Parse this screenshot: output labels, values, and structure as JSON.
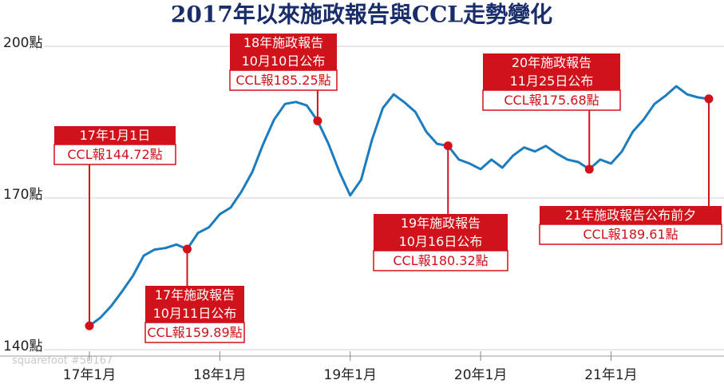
{
  "chart_data": {
    "type": "line",
    "title": "2017年以來施政報告與CCL走勢變化",
    "watermark": "squarefoot #50167",
    "color": "#1b7cc0",
    "categories": [
      "17年1月",
      null,
      null,
      null,
      null,
      null,
      null,
      null,
      null,
      null,
      null,
      null,
      "18年1月",
      null,
      null,
      null,
      null,
      null,
      null,
      null,
      null,
      null,
      null,
      null,
      "19年1月",
      null,
      null,
      null,
      null,
      null,
      null,
      null,
      null,
      null,
      null,
      null,
      "20年1月",
      null,
      null,
      null,
      null,
      null,
      null,
      null,
      null,
      null,
      null,
      null,
      "21年1月",
      null,
      null,
      null,
      null,
      null,
      null,
      null,
      null,
      null
    ],
    "values": [
      144.72,
      146.3,
      148.6,
      151.5,
      154.6,
      158.6,
      159.8,
      160.1,
      160.8,
      159.89,
      163.1,
      164.2,
      166.8,
      168.1,
      171.3,
      175.2,
      180.7,
      185.5,
      188.6,
      189.0,
      188.3,
      185.25,
      180.7,
      175.2,
      170.5,
      173.6,
      181.5,
      187.8,
      190.5,
      188.9,
      187.0,
      183.1,
      180.7,
      180.32,
      177.6,
      176.8,
      175.7,
      177.6,
      176.0,
      178.4,
      180.0,
      179.2,
      180.3,
      178.8,
      177.6,
      177.1,
      175.68,
      177.6,
      176.8,
      179.2,
      183.1,
      185.5,
      188.6,
      190.2,
      192.1,
      190.5,
      189.9,
      189.61
    ],
    "ylim": [
      140,
      200
    ],
    "yticks": [
      {
        "value": 140,
        "label": "140點"
      },
      {
        "value": 170,
        "label": "170點"
      },
      {
        "value": 200,
        "label": "200點"
      }
    ],
    "grid": true,
    "annotations": [
      {
        "lines": [
          "17年1月1日"
        ],
        "label": "CCL報144.72點",
        "value": 144.72
      },
      {
        "lines": [
          "17年施政報告",
          "10月11日公布"
        ],
        "label": "CCL報159.89點",
        "value": 159.89
      },
      {
        "lines": [
          "18年施政報告",
          "10月10日公布"
        ],
        "label": "CCL報185.25點",
        "value": 185.25
      },
      {
        "lines": [
          "19年施政報告",
          "10月16日公布"
        ],
        "label": "CCL報180.32點",
        "value": 180.32
      },
      {
        "lines": [
          "20年施政報告",
          "11月25日公布"
        ],
        "label": "CCL報175.68點",
        "value": 175.68
      },
      {
        "lines": [
          "21年施政報告公布前夕"
        ],
        "label": "CCL報189.61點",
        "value": 189.61
      }
    ]
  }
}
